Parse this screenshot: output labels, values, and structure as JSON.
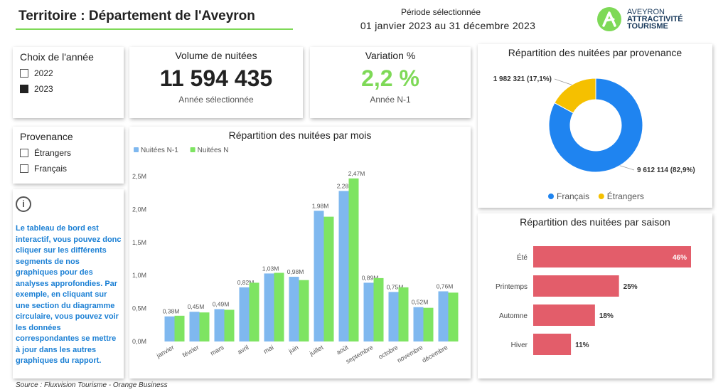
{
  "header": {
    "title": "Territoire : Département de l'Aveyron",
    "period_label": "Période sélectionnée",
    "period_value": "01 janvier 2023 au 31 décembre 2023",
    "logo_line1": "AVEYRON",
    "logo_line2": "ATTRACTIVITÉ",
    "logo_line3": "TOURISME"
  },
  "year_slicer": {
    "title": "Choix de l'année",
    "items": [
      {
        "label": "2022",
        "checked": false
      },
      {
        "label": "2023",
        "checked": true
      }
    ]
  },
  "provenance_slicer": {
    "title": "Provenance",
    "items": [
      {
        "label": "Étrangers",
        "checked": false
      },
      {
        "label": "Français",
        "checked": false
      }
    ]
  },
  "kpi_volume": {
    "title": "Volume de nuitées",
    "value": "11 594 435",
    "sub": "Année sélectionnée"
  },
  "kpi_variation": {
    "title": "Variation %",
    "value": "2,2 %",
    "sub": "Année N-1",
    "color": "#7ed957"
  },
  "info": {
    "text": "Le tableau de bord est interactif, vous pouvez donc cliquer sur les différents segments de nos graphiques pour des analyses approfondies. Par exemple, en cliquant sur une section du diagramme circulaire, vous pouvez voir les données correspondantes se mettre à jour dans les autres graphiques du rapport."
  },
  "source": "Source : Fluxvision Tourisme - Orange Business",
  "chart_data": [
    {
      "type": "bar",
      "title": "Répartition des nuitées par mois",
      "categories": [
        "janvier",
        "février",
        "mars",
        "avril",
        "mai",
        "juin",
        "juillet",
        "août",
        "septembre",
        "octobre",
        "novembre",
        "décembre"
      ],
      "series": [
        {
          "name": "Nuitées N-1",
          "color": "#7fb8ef",
          "values": [
            0.38,
            0.45,
            0.49,
            0.82,
            1.03,
            0.98,
            1.98,
            2.28,
            0.89,
            0.75,
            0.52,
            0.76
          ],
          "labels": [
            "0,38M",
            "0,45M",
            "0,49M",
            "0,82M",
            "1,03M",
            "0,98M",
            "1,98M",
            "2,28M",
            "0,89M",
            "0,75M",
            "0,52M",
            "0,76M"
          ]
        },
        {
          "name": "Nuitées N",
          "color": "#7ee462",
          "values": [
            0.39,
            0.44,
            0.48,
            0.89,
            1.04,
            0.93,
            1.89,
            2.47,
            0.96,
            0.82,
            0.51,
            0.74
          ],
          "labels": [
            "",
            "",
            "",
            "",
            "",
            "",
            "",
            "2,47M",
            "",
            "",
            "",
            ""
          ]
        }
      ],
      "yticks": [
        "0,0M",
        "0,5M",
        "1,0M",
        "1,5M",
        "2,0M",
        "2,5M"
      ],
      "ylim": [
        0,
        2.5
      ],
      "legend": "top-left"
    },
    {
      "type": "pie",
      "title": "Répartition des nuitées par provenance",
      "slices": [
        {
          "name": "Français",
          "value": 9612114,
          "label": "9 612 114 (82,9%)",
          "color": "#1f84f0"
        },
        {
          "name": "Étrangers",
          "value": 1982321,
          "label": "1 982 321 (17,1%)",
          "color": "#f5c000"
        }
      ],
      "legend": "bottom"
    },
    {
      "type": "bar",
      "orientation": "horizontal",
      "title": "Répartition des nuitées par saison",
      "categories": [
        "Été",
        "Printemps",
        "Automne",
        "Hiver"
      ],
      "values": [
        46,
        25,
        18,
        11
      ],
      "labels": [
        "46%",
        "25%",
        "18%",
        "11%"
      ],
      "color": "#e35d6a",
      "xlim": [
        0,
        46
      ]
    }
  ]
}
